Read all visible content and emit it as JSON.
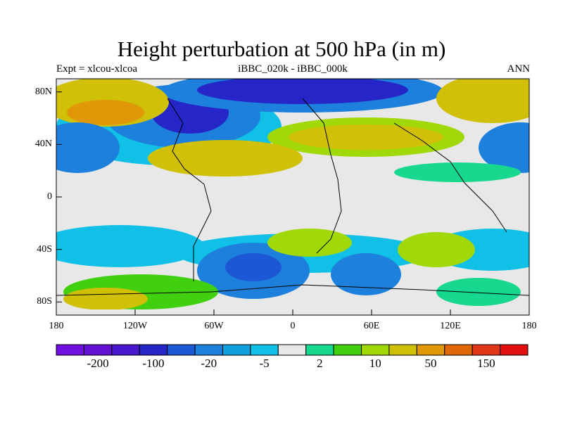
{
  "title": "Height perturbation at 500 hPa (in m)",
  "subtitle_left": "Expt = xlcou-xlcoa",
  "subtitle_center": "iBBC_020k - iBBC_000k",
  "subtitle_right": "ANN",
  "lat_labels": [
    "80N",
    "40N",
    "0",
    "40S",
    "80S"
  ],
  "lon_labels": [
    "180",
    "120W",
    "60W",
    "0",
    "60E",
    "120E",
    "180"
  ],
  "colorbar": {
    "colors": [
      "#7010e0",
      "#6412d2",
      "#4a18cc",
      "#2626c8",
      "#1c58d6",
      "#1c80dc",
      "#10a0e0",
      "#10c0e6",
      "#e8e8e8",
      "#18d890",
      "#40d010",
      "#a0d808",
      "#d0c008",
      "#e09808",
      "#e06808",
      "#e03818",
      "#e01010"
    ],
    "labels": [
      "-200",
      "-100",
      "-20",
      "-5",
      "2",
      "10",
      "50",
      "150"
    ]
  },
  "colors": {
    "deep_neg": "#2626c8",
    "strong_neg": "#1c58d6",
    "mid_neg": "#1c80dc",
    "light_neg": "#10a0e0",
    "weak_neg": "#10c0e6",
    "neutral": "#e8e8e8",
    "weak_pos": "#18d890",
    "mid_pos": "#40d010",
    "strong_pos": "#a0d808",
    "max_pos": "#d0c008"
  }
}
